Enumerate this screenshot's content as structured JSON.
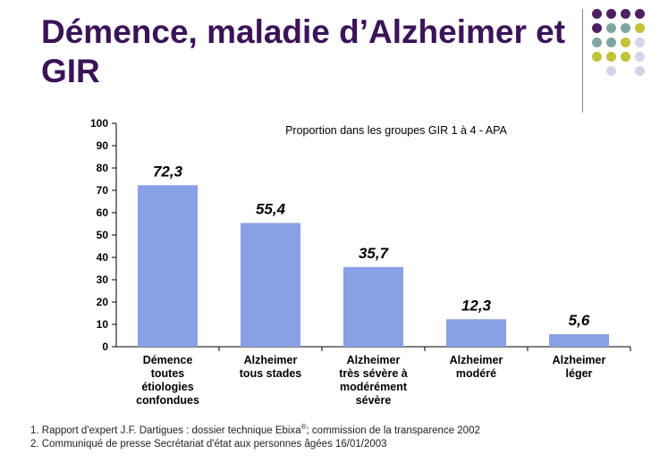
{
  "slide": {
    "title": "Démence, maladie d’Alzheimer et GIR",
    "footnotes": {
      "note1_before": "1. Rapport d'expert J.F. Dartigues : dossier technique Ebixa",
      "note1_sup": "®",
      "note1_after": "; commission de la transparence 2002",
      "note2": "2. Communiqué de presse Secrétariat d'état aux personnes âgées 16/01/2003"
    }
  },
  "colors": {
    "title": "#3b1358",
    "bar": "#8aa0e6",
    "dot_purple": "#4e2061",
    "dot_teal": "#7ea4a3",
    "dot_olive": "#c2c238",
    "dot_lavender": "#d6d4e8"
  },
  "decoration": {
    "dot_grid": [
      [
        "purple",
        "purple",
        "purple",
        "purple"
      ],
      [
        "purple",
        "teal",
        "teal",
        "olive"
      ],
      [
        "teal",
        "teal",
        "olive",
        "lavender"
      ],
      [
        "olive",
        "olive",
        "olive",
        "lavender"
      ],
      [
        "",
        "lavender",
        "",
        "lavender"
      ]
    ]
  },
  "chart_data": {
    "type": "bar",
    "title": "Proportion dans les groupes GIR 1 à 4 - APA",
    "categories": [
      [
        "Démence",
        "toutes",
        "étiologies",
        "confondues"
      ],
      [
        "Alzheimer",
        "tous stades"
      ],
      [
        "Alzheimer",
        "très sévère à",
        "modérément",
        "sévère"
      ],
      [
        "Alzheimer",
        "modéré"
      ],
      [
        "Alzheimer",
        "léger"
      ]
    ],
    "values": [
      72.3,
      55.4,
      35.7,
      12.3,
      5.6
    ],
    "value_labels": [
      "72,3",
      "55,4",
      "35,7",
      "12,3",
      "5,6"
    ],
    "ylim": [
      0,
      100
    ],
    "yticks": [
      "0",
      "10",
      "20",
      "30",
      "40",
      "50",
      "60",
      "70",
      "80",
      "90",
      "100"
    ],
    "grid": false,
    "legend": "none"
  }
}
